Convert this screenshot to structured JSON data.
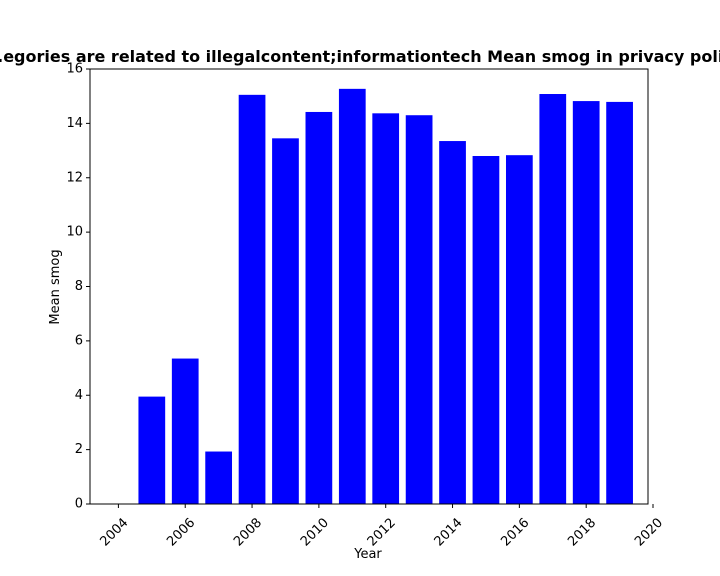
{
  "chart_data": {
    "type": "bar",
    "title": "...egories are related to illegalcontent;informationtech Mean smog in privacy polic...",
    "xlabel": "Year",
    "ylabel": "Mean smog",
    "x": [
      2005,
      2006,
      2007,
      2008,
      2009,
      2010,
      2011,
      2012,
      2013,
      2014,
      2015,
      2016,
      2017,
      2018,
      2019
    ],
    "values": [
      3.95,
      5.35,
      1.93,
      15.05,
      13.45,
      14.42,
      15.27,
      14.37,
      14.3,
      13.35,
      12.8,
      12.83,
      15.08,
      14.82,
      14.79
    ],
    "xlim": [
      2003.15,
      2019.85
    ],
    "ylim": [
      0,
      16
    ],
    "xticks": [
      2004,
      2006,
      2008,
      2010,
      2012,
      2014,
      2016,
      2018,
      2020
    ],
    "yticks": [
      0,
      2,
      4,
      6,
      8,
      10,
      12,
      14,
      16
    ],
    "bar_color": "#0000ff",
    "grid": false
  }
}
